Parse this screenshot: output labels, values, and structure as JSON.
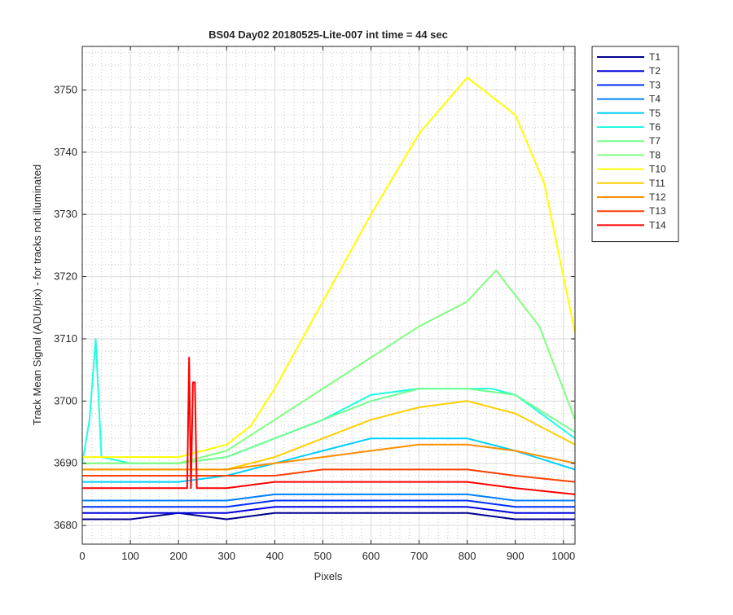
{
  "chart_data": {
    "type": "line",
    "title": "BS04 Day02 20180525-Lite-007 int time = 44 sec",
    "xlabel": "Pixels",
    "ylabel": "Track Mean Signal (ADU/pix) - for tracks not illuminated",
    "xlim": [
      0,
      1024
    ],
    "ylim": [
      3677,
      3757
    ],
    "xticks": [
      0,
      100,
      200,
      300,
      400,
      500,
      600,
      700,
      800,
      900,
      1000
    ],
    "yticks": [
      3680,
      3690,
      3700,
      3710,
      3720,
      3730,
      3740,
      3750
    ],
    "grid": true,
    "minor_grid": true,
    "legend_position": "outside-top-right",
    "series": [
      {
        "name": "T1",
        "color": "#00008f",
        "x": [
          0,
          100,
          200,
          300,
          400,
          500,
          600,
          700,
          800,
          900,
          1024
        ],
        "y": [
          3681,
          3681,
          3682,
          3681,
          3682,
          3682,
          3682,
          3682,
          3682,
          3681,
          3681
        ]
      },
      {
        "name": "T2",
        "color": "#0000df",
        "x": [
          0,
          100,
          200,
          300,
          400,
          500,
          600,
          700,
          800,
          900,
          1024
        ],
        "y": [
          3682,
          3682,
          3682,
          3682,
          3683,
          3683,
          3683,
          3683,
          3683,
          3682,
          3682
        ]
      },
      {
        "name": "T3",
        "color": "#0030ff",
        "x": [
          0,
          100,
          200,
          300,
          400,
          500,
          600,
          700,
          800,
          900,
          1024
        ],
        "y": [
          3683,
          3683,
          3683,
          3683,
          3684,
          3684,
          3684,
          3684,
          3684,
          3683,
          3683
        ]
      },
      {
        "name": "T4",
        "color": "#0080ff",
        "x": [
          0,
          100,
          200,
          300,
          400,
          500,
          600,
          700,
          800,
          900,
          1024
        ],
        "y": [
          3684,
          3684,
          3684,
          3684,
          3685,
          3685,
          3685,
          3685,
          3685,
          3684,
          3684
        ]
      },
      {
        "name": "T5",
        "color": "#00cfff",
        "x": [
          0,
          100,
          200,
          300,
          400,
          500,
          600,
          700,
          800,
          900,
          1024
        ],
        "y": [
          3687,
          3687,
          3687,
          3688,
          3690,
          3692,
          3694,
          3694,
          3694,
          3692,
          3689
        ]
      },
      {
        "name": "T6",
        "color": "#20ffdf",
        "x": [
          0,
          15,
          28,
          40,
          100,
          200,
          300,
          400,
          500,
          600,
          700,
          800,
          850,
          900,
          1024
        ],
        "y": [
          3690,
          3697,
          3710,
          3691,
          3690,
          3690,
          3691,
          3694,
          3697,
          3701,
          3702,
          3702,
          3702,
          3701,
          3694
        ]
      },
      {
        "name": "T7",
        "color": "#70ff8f",
        "x": [
          0,
          100,
          200,
          300,
          400,
          500,
          600,
          700,
          800,
          900,
          1024
        ],
        "y": [
          3690,
          3690,
          3690,
          3691,
          3694,
          3697,
          3700,
          3702,
          3702,
          3701,
          3695
        ]
      },
      {
        "name": "T8",
        "color": "#80ff80",
        "x": [
          0,
          100,
          200,
          300,
          400,
          500,
          600,
          700,
          800,
          860,
          900,
          950,
          1024
        ],
        "y": [
          3690,
          3690,
          3690,
          3692,
          3697,
          3702,
          3707,
          3712,
          3716,
          3721,
          3717,
          3712,
          3697
        ]
      },
      {
        "name": "T10",
        "color": "#ffff00",
        "x": [
          0,
          100,
          200,
          300,
          350,
          400,
          500,
          600,
          700,
          800,
          900,
          960,
          1024
        ],
        "y": [
          3691,
          3691,
          3691,
          3693,
          3696,
          3702,
          3716,
          3730,
          3743,
          3752,
          3746,
          3735,
          3711
        ]
      },
      {
        "name": "T11",
        "color": "#ffcf00",
        "x": [
          0,
          100,
          200,
          300,
          400,
          500,
          600,
          700,
          800,
          900,
          1024
        ],
        "y": [
          3689,
          3689,
          3689,
          3689,
          3691,
          3694,
          3697,
          3699,
          3700,
          3698,
          3693
        ]
      },
      {
        "name": "T12",
        "color": "#ff8f00",
        "x": [
          0,
          100,
          200,
          300,
          400,
          500,
          600,
          700,
          800,
          900,
          1024
        ],
        "y": [
          3689,
          3689,
          3689,
          3689,
          3690,
          3691,
          3692,
          3693,
          3693,
          3692,
          3690
        ]
      },
      {
        "name": "T13",
        "color": "#ff4000",
        "x": [
          0,
          100,
          200,
          300,
          400,
          500,
          600,
          700,
          800,
          900,
          1024
        ],
        "y": [
          3688,
          3688,
          3688,
          3688,
          3688,
          3689,
          3689,
          3689,
          3689,
          3688,
          3687
        ]
      },
      {
        "name": "T14",
        "color": "#ff0000",
        "x": [
          0,
          100,
          200,
          218,
          222,
          226,
          230,
          234,
          238,
          300,
          400,
          500,
          600,
          700,
          800,
          900,
          1024
        ],
        "y": [
          3686,
          3686,
          3686,
          3686,
          3707,
          3686,
          3703,
          3703,
          3686,
          3686,
          3687,
          3687,
          3687,
          3687,
          3687,
          3686,
          3685
        ]
      }
    ]
  }
}
